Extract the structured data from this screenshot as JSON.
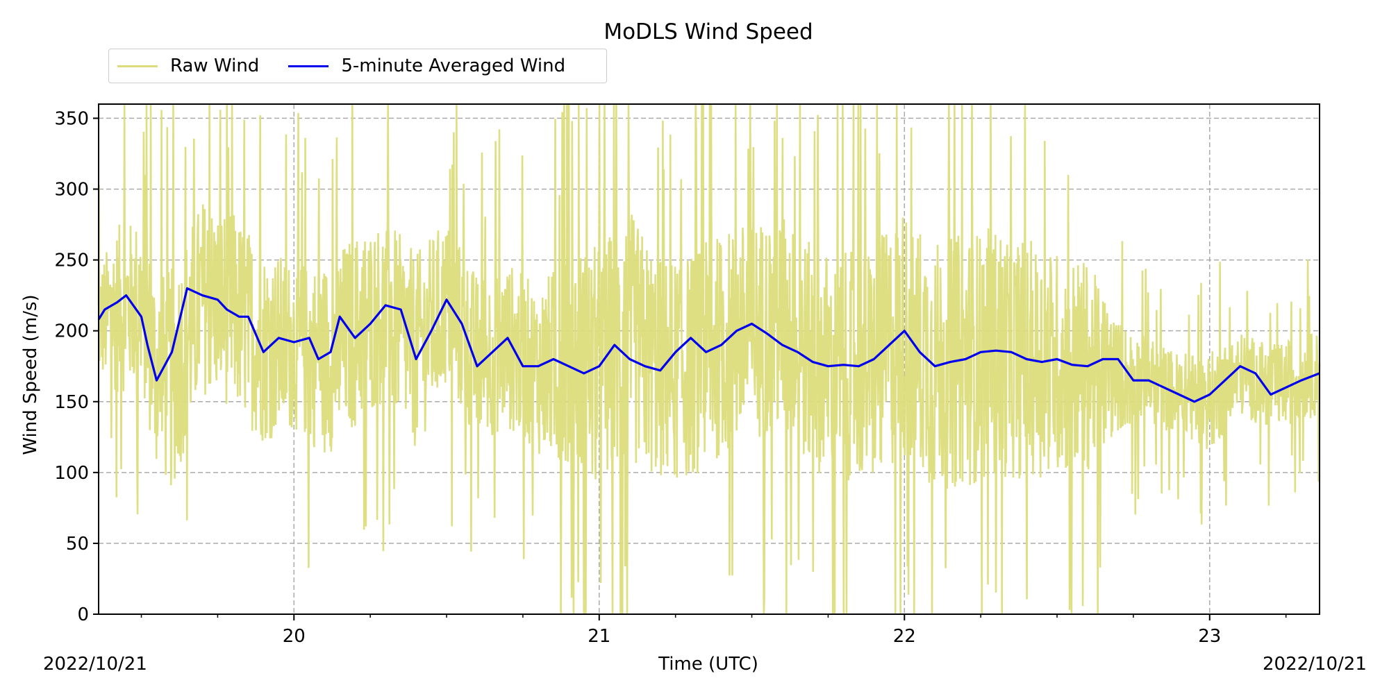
{
  "chart_data": {
    "type": "line",
    "title": "MoDLS Wind Speed",
    "xlabel": "Time (UTC)",
    "ylabel": "Wind Speed (m/s)",
    "date_start_label": "2022/10/21",
    "date_end_label": "2022/10/21",
    "xlim": [
      19.36,
      23.36
    ],
    "ylim": [
      0,
      360
    ],
    "x_ticks": [
      20,
      21,
      22,
      23
    ],
    "x_tick_labels": [
      "20",
      "21",
      "22",
      "23"
    ],
    "y_ticks": [
      0,
      50,
      100,
      150,
      200,
      250,
      300,
      350
    ],
    "y_tick_labels": [
      "0",
      "50",
      "100",
      "150",
      "200",
      "250",
      "300",
      "350"
    ],
    "grid": true,
    "legend_position": "top-left, above plot",
    "series": [
      {
        "name": "Raw Wind",
        "color": "#dcdc7c",
        "x": [
          19.36,
          19.42,
          19.5,
          19.55,
          19.6,
          19.7,
          19.8,
          19.9,
          20.0,
          20.1,
          20.2,
          20.3,
          20.4,
          20.5,
          20.6,
          20.7,
          20.8,
          20.9,
          21.0,
          21.1,
          21.2,
          21.3,
          21.4,
          21.5,
          21.6,
          21.7,
          21.8,
          21.9,
          22.0,
          22.1,
          22.2,
          22.3,
          22.4,
          22.5,
          22.6,
          22.7,
          22.8,
          22.9,
          23.0,
          23.1,
          23.2,
          23.36
        ],
        "y": [
          205,
          215,
          220,
          170,
          165,
          225,
          215,
          190,
          190,
          180,
          200,
          215,
          185,
          220,
          180,
          190,
          172,
          178,
          172,
          195,
          172,
          175,
          190,
          200,
          205,
          180,
          175,
          175,
          200,
          175,
          180,
          185,
          180,
          178,
          175,
          168,
          165,
          155,
          150,
          170,
          160,
          170
        ],
        "spread": [
          40,
          60,
          60,
          70,
          80,
          70,
          70,
          70,
          60,
          70,
          70,
          65,
          70,
          60,
          60,
          60,
          60,
          80,
          90,
          90,
          80,
          80,
          80,
          80,
          80,
          80,
          80,
          85,
          90,
          90,
          90,
          90,
          85,
          80,
          75,
          40,
          30,
          30,
          35,
          30,
          30,
          30
        ]
      },
      {
        "name": "5-minute Averaged Wind",
        "color": "#0000ee",
        "x": [
          19.36,
          19.38,
          19.42,
          19.45,
          19.5,
          19.52,
          19.55,
          19.6,
          19.65,
          19.7,
          19.75,
          19.78,
          19.82,
          19.85,
          19.9,
          19.95,
          20.0,
          20.05,
          20.08,
          20.12,
          20.15,
          20.2,
          20.25,
          20.3,
          20.35,
          20.4,
          20.45,
          20.5,
          20.55,
          20.6,
          20.65,
          20.7,
          20.75,
          20.8,
          20.85,
          20.9,
          20.95,
          21.0,
          21.05,
          21.1,
          21.15,
          21.2,
          21.25,
          21.3,
          21.35,
          21.4,
          21.45,
          21.5,
          21.55,
          21.6,
          21.65,
          21.7,
          21.75,
          21.8,
          21.85,
          21.9,
          21.95,
          22.0,
          22.05,
          22.1,
          22.15,
          22.2,
          22.25,
          22.3,
          22.35,
          22.4,
          22.45,
          22.5,
          22.55,
          22.6,
          22.65,
          22.7,
          22.75,
          22.8,
          22.85,
          22.9,
          22.95,
          23.0,
          23.05,
          23.1,
          23.15,
          23.2,
          23.25,
          23.3,
          23.36
        ],
        "y": [
          208,
          215,
          220,
          225,
          210,
          190,
          165,
          185,
          230,
          225,
          222,
          215,
          210,
          210,
          185,
          195,
          192,
          195,
          180,
          185,
          210,
          195,
          205,
          218,
          215,
          180,
          200,
          222,
          205,
          175,
          185,
          195,
          175,
          175,
          180,
          175,
          170,
          175,
          190,
          180,
          175,
          172,
          185,
          195,
          185,
          190,
          200,
          205,
          198,
          190,
          185,
          178,
          175,
          176,
          175,
          180,
          190,
          200,
          185,
          175,
          178,
          180,
          185,
          186,
          185,
          180,
          178,
          180,
          176,
          175,
          180,
          180,
          165,
          165,
          160,
          155,
          150,
          155,
          165,
          175,
          170,
          155,
          160,
          165,
          170
        ]
      }
    ]
  }
}
